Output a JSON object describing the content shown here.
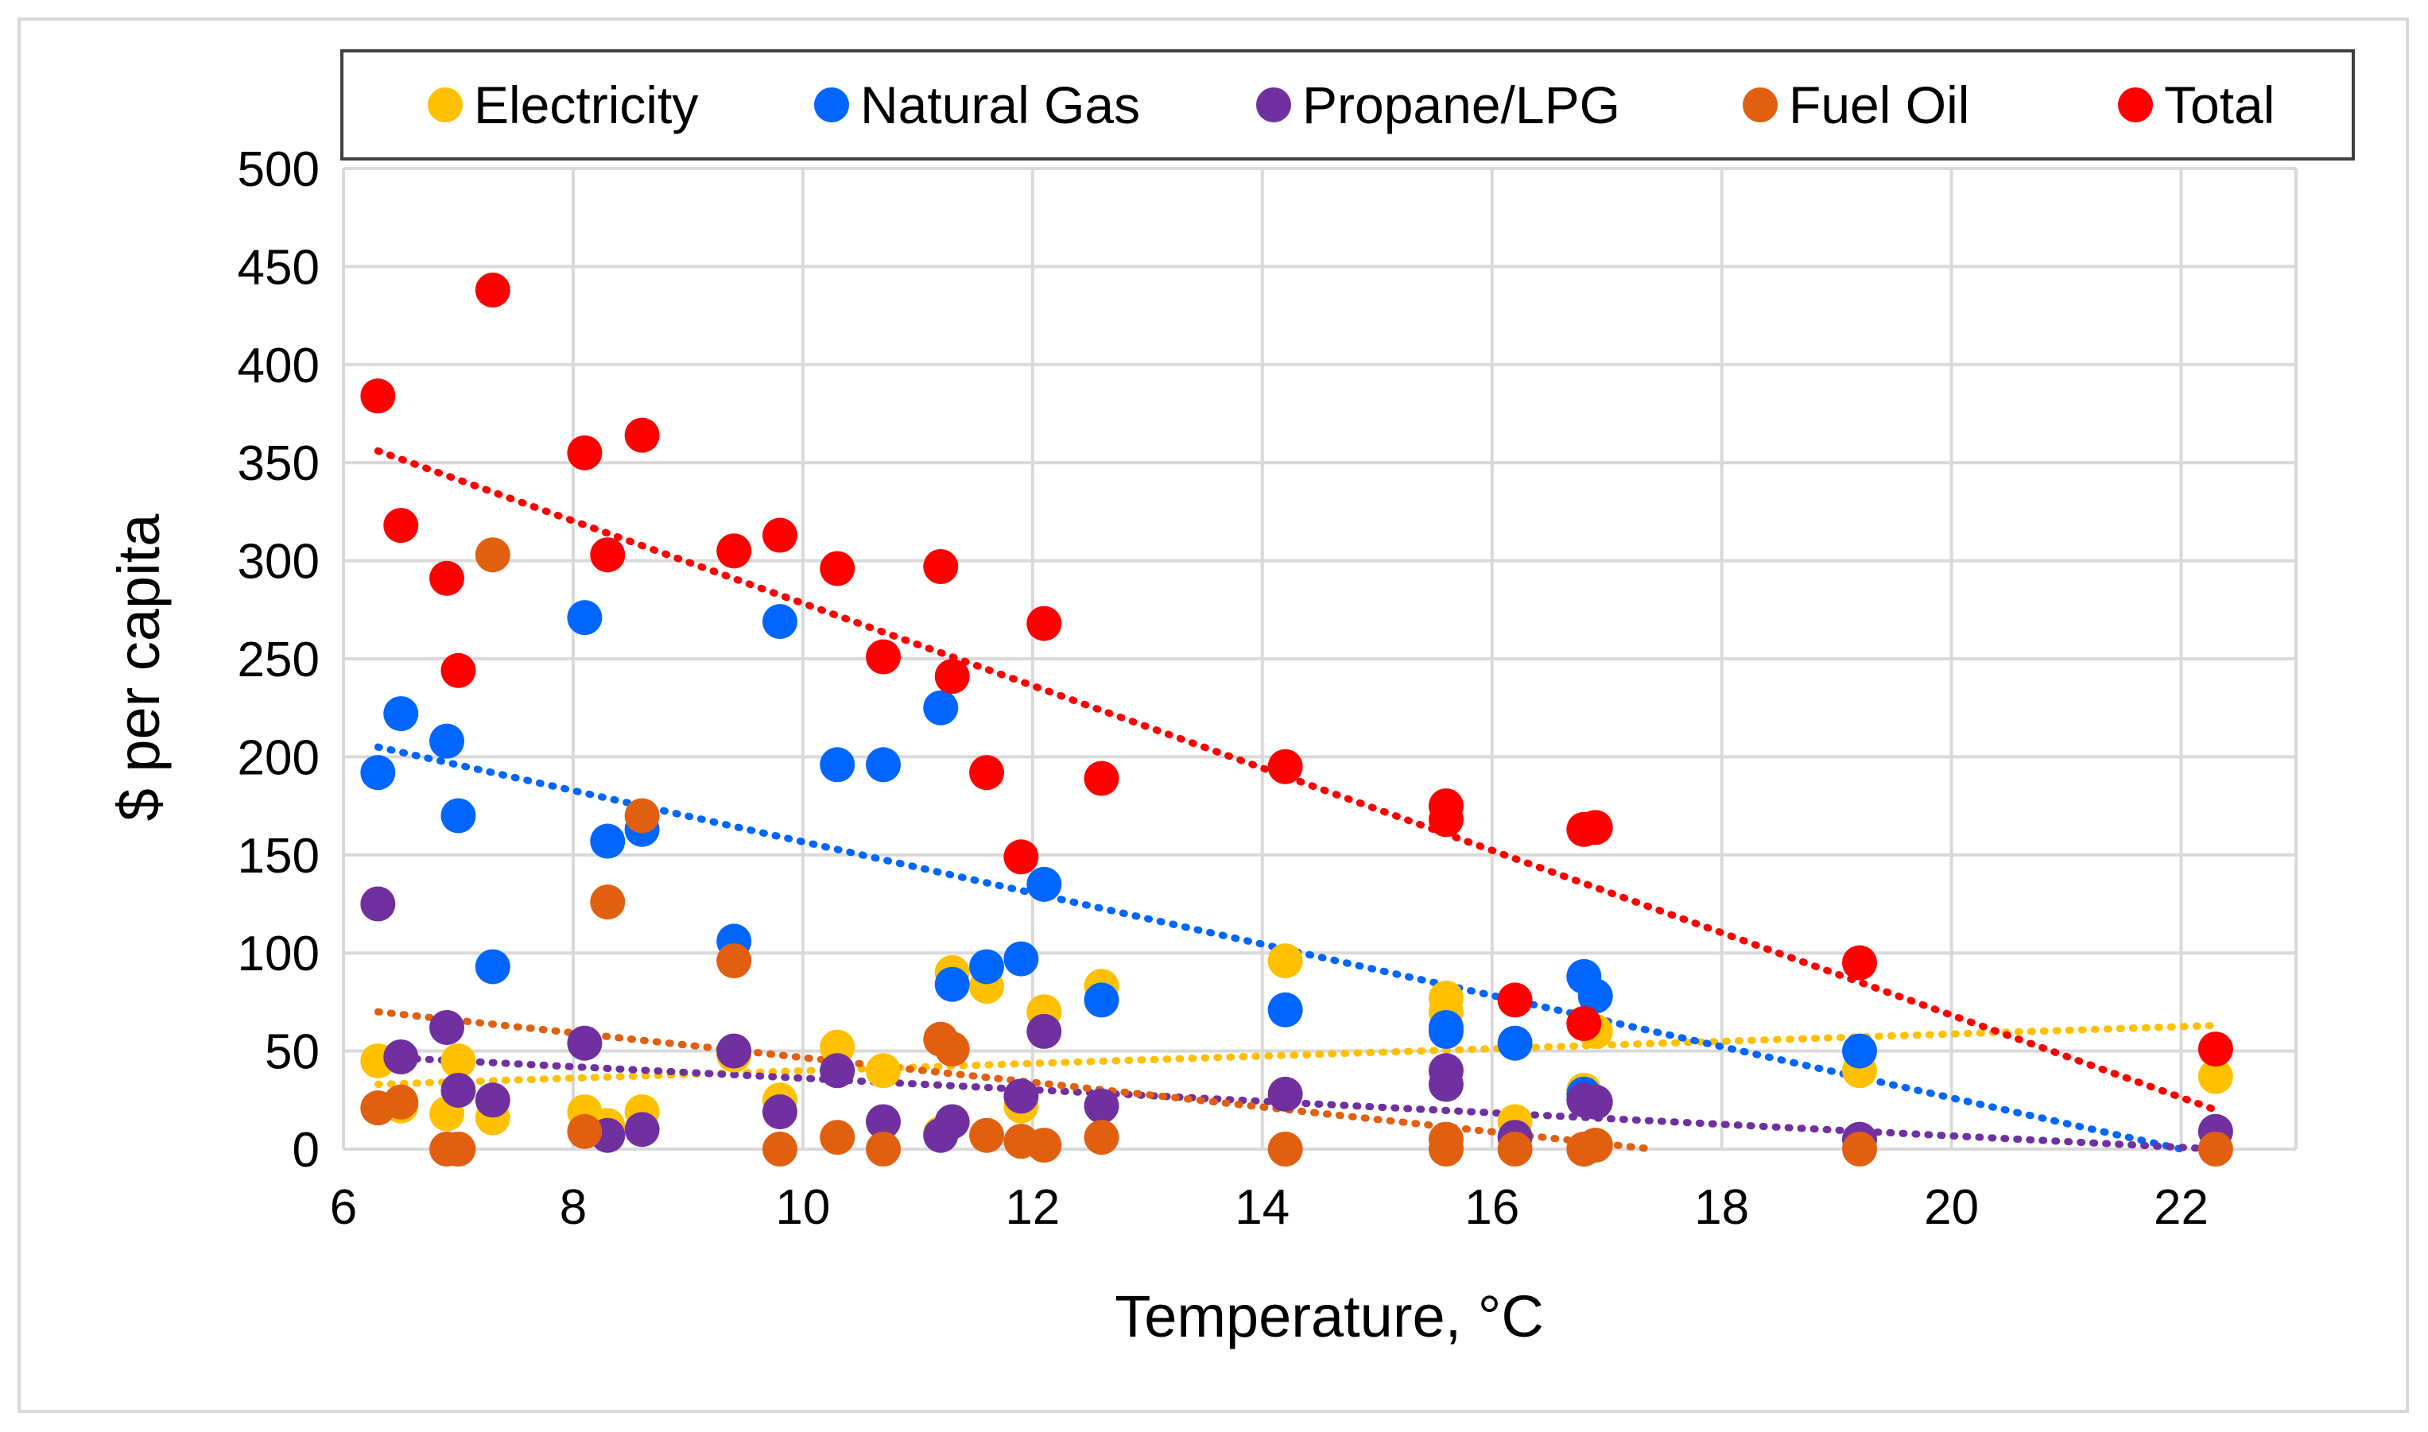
{
  "chart_data": {
    "type": "scatter",
    "title": "",
    "xlabel": "Temperature, °C",
    "ylabel": "$ per capita",
    "xlim": [
      6,
      23
    ],
    "ylim": [
      0,
      500
    ],
    "x_ticks": [
      "6",
      "8",
      "10",
      "12",
      "14",
      "16",
      "18",
      "20",
      "22"
    ],
    "y_ticks": [
      "0",
      "50",
      "100",
      "150",
      "200",
      "250",
      "300",
      "350",
      "400",
      "450",
      "500"
    ],
    "grid": true,
    "legend_position": "top",
    "trendlines": "linear, dotted",
    "series": [
      {
        "name": "Electricity",
        "color": "#FFC000",
        "trend": [
          [
            6.3,
            33
          ],
          [
            22.3,
            63
          ]
        ],
        "points": [
          [
            6.3,
            45
          ],
          [
            6.5,
            22
          ],
          [
            6.9,
            18
          ],
          [
            7.0,
            45
          ],
          [
            7.3,
            16
          ],
          [
            8.1,
            19
          ],
          [
            8.3,
            12
          ],
          [
            8.6,
            19
          ],
          [
            9.4,
            48
          ],
          [
            9.8,
            25
          ],
          [
            10.3,
            52
          ],
          [
            10.7,
            40
          ],
          [
            11.2,
            8
          ],
          [
            11.3,
            90
          ],
          [
            11.6,
            83
          ],
          [
            11.9,
            22
          ],
          [
            12.1,
            70
          ],
          [
            12.6,
            83
          ],
          [
            14.2,
            96
          ],
          [
            15.6,
            77
          ],
          [
            15.6,
            70
          ],
          [
            16.2,
            14
          ],
          [
            16.8,
            30
          ],
          [
            16.9,
            60
          ],
          [
            19.2,
            40
          ],
          [
            22.3,
            37
          ]
        ]
      },
      {
        "name": "Natural Gas",
        "color": "#0066FF",
        "trend": [
          [
            6.3,
            205
          ],
          [
            22.0,
            0
          ]
        ],
        "points": [
          [
            6.3,
            192
          ],
          [
            6.5,
            222
          ],
          [
            6.9,
            208
          ],
          [
            7.0,
            170
          ],
          [
            7.3,
            93
          ],
          [
            8.1,
            271
          ],
          [
            8.3,
            157
          ],
          [
            8.6,
            163
          ],
          [
            9.4,
            106
          ],
          [
            9.8,
            269
          ],
          [
            10.3,
            196
          ],
          [
            10.7,
            196
          ],
          [
            11.2,
            225
          ],
          [
            11.3,
            84
          ],
          [
            11.6,
            93
          ],
          [
            11.9,
            97
          ],
          [
            12.1,
            135
          ],
          [
            12.6,
            76
          ],
          [
            14.2,
            71
          ],
          [
            15.6,
            60
          ],
          [
            15.6,
            62
          ],
          [
            16.2,
            54
          ],
          [
            16.8,
            88
          ],
          [
            16.9,
            78
          ],
          [
            16.8,
            28
          ],
          [
            19.2,
            50
          ]
        ]
      },
      {
        "name": "Propane/LPG",
        "color": "#7030A0",
        "trend": [
          [
            6.3,
            47
          ],
          [
            22.3,
            0
          ]
        ],
        "points": [
          [
            6.3,
            125
          ],
          [
            6.5,
            47
          ],
          [
            6.9,
            62
          ],
          [
            7.0,
            30
          ],
          [
            7.3,
            25
          ],
          [
            8.1,
            54
          ],
          [
            8.3,
            7
          ],
          [
            8.6,
            10
          ],
          [
            9.4,
            50
          ],
          [
            9.8,
            19
          ],
          [
            10.3,
            40
          ],
          [
            10.7,
            14
          ],
          [
            11.2,
            7
          ],
          [
            11.3,
            14
          ],
          [
            11.9,
            27
          ],
          [
            12.1,
            60
          ],
          [
            12.6,
            22
          ],
          [
            14.2,
            28
          ],
          [
            15.6,
            33
          ],
          [
            15.6,
            40
          ],
          [
            16.2,
            6
          ],
          [
            16.8,
            25
          ],
          [
            16.9,
            24
          ],
          [
            19.2,
            5
          ],
          [
            22.3,
            9
          ]
        ]
      },
      {
        "name": "Fuel Oil",
        "color": "#E06010",
        "trend": [
          [
            6.3,
            70
          ],
          [
            17.4,
            0
          ]
        ],
        "points": [
          [
            6.3,
            21
          ],
          [
            6.5,
            24
          ],
          [
            6.9,
            0
          ],
          [
            7.0,
            0
          ],
          [
            7.3,
            303
          ],
          [
            8.1,
            9
          ],
          [
            8.3,
            126
          ],
          [
            8.6,
            170
          ],
          [
            9.4,
            96
          ],
          [
            9.8,
            0
          ],
          [
            10.3,
            6
          ],
          [
            10.7,
            0
          ],
          [
            11.2,
            56
          ],
          [
            11.3,
            51
          ],
          [
            11.6,
            7
          ],
          [
            11.9,
            4
          ],
          [
            12.1,
            2
          ],
          [
            12.6,
            6
          ],
          [
            14.2,
            0
          ],
          [
            15.6,
            5
          ],
          [
            15.6,
            0
          ],
          [
            16.2,
            0
          ],
          [
            16.8,
            0
          ],
          [
            16.9,
            2
          ],
          [
            19.2,
            0
          ],
          [
            22.3,
            0
          ]
        ]
      },
      {
        "name": "Total",
        "color": "#FF0000",
        "trend": [
          [
            6.3,
            356
          ],
          [
            22.3,
            20
          ]
        ],
        "points": [
          [
            6.3,
            384
          ],
          [
            6.5,
            318
          ],
          [
            6.9,
            291
          ],
          [
            7.0,
            244
          ],
          [
            7.3,
            438
          ],
          [
            8.1,
            355
          ],
          [
            8.3,
            303
          ],
          [
            8.6,
            364
          ],
          [
            9.4,
            305
          ],
          [
            9.8,
            313
          ],
          [
            10.3,
            296
          ],
          [
            10.7,
            251
          ],
          [
            11.2,
            297
          ],
          [
            11.3,
            241
          ],
          [
            11.6,
            192
          ],
          [
            11.9,
            149
          ],
          [
            12.1,
            268
          ],
          [
            12.6,
            189
          ],
          [
            14.2,
            195
          ],
          [
            15.6,
            175
          ],
          [
            15.6,
            168
          ],
          [
            16.2,
            76
          ],
          [
            16.8,
            163
          ],
          [
            16.9,
            164
          ],
          [
            16.8,
            64
          ],
          [
            19.2,
            95
          ],
          [
            22.3,
            51
          ]
        ]
      }
    ]
  }
}
